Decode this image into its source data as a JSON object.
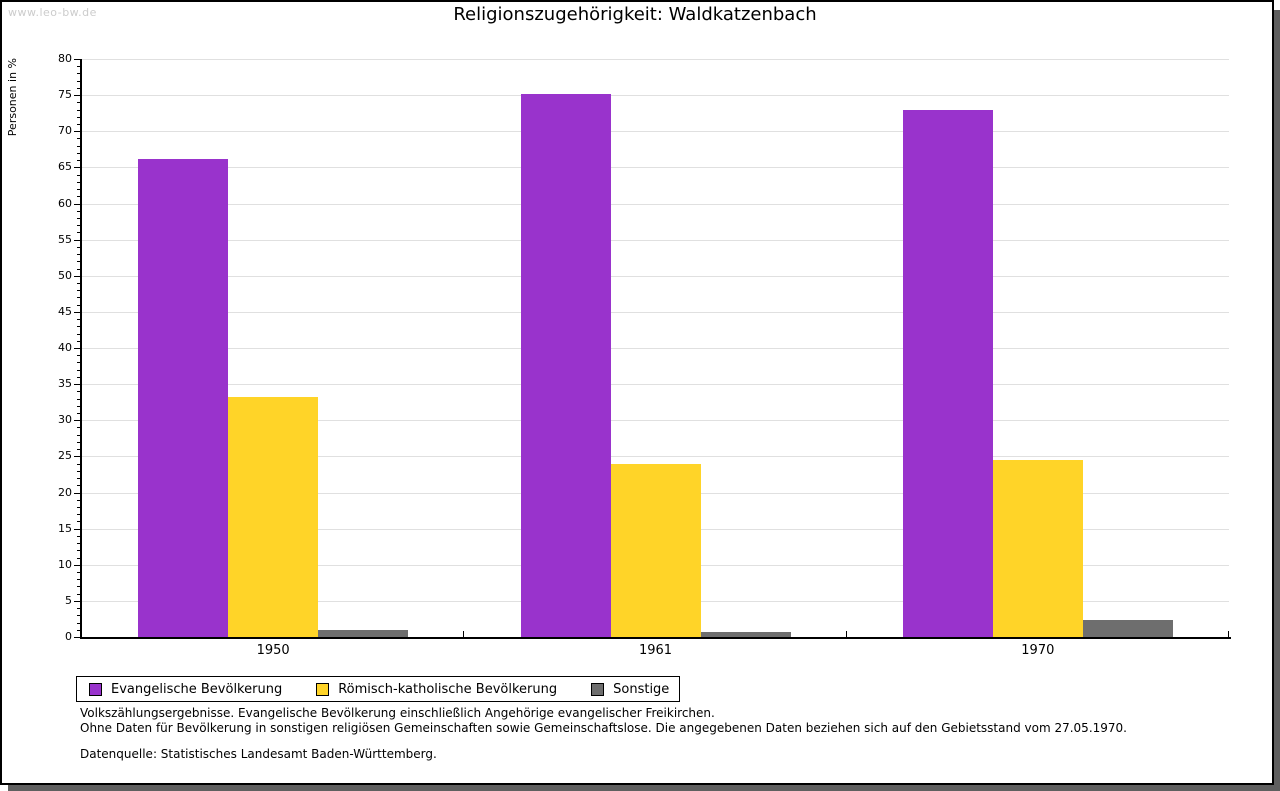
{
  "window": {
    "watermark": "www.leo-bw.de"
  },
  "title": "Religionszugehörigkeit: Waldkatzenbach",
  "chart_data": {
    "type": "bar",
    "title": "Religionszugehörigkeit: Waldkatzenbach",
    "ylabel": "Personen in %",
    "xlabel": "",
    "categories": [
      "1950",
      "1961",
      "1970"
    ],
    "series": [
      {
        "name": "Evangelische Bevölkerung",
        "color": "#9933cc",
        "values": [
          66.1,
          75.2,
          73.0
        ]
      },
      {
        "name": "Römisch-katholische Bevölkerung",
        "color": "#ffd428",
        "values": [
          33.2,
          24.0,
          24.5
        ]
      },
      {
        "name": "Sonstige",
        "color": "#6e6e6e",
        "values": [
          0.9,
          0.7,
          2.3
        ]
      }
    ],
    "ylim": [
      0,
      80
    ],
    "ytick_step": 5,
    "yminor_step": 1,
    "grid": true,
    "gridline_color": "#e0e0e0",
    "legend_position": "bottom-left"
  },
  "footnotes": {
    "line1": "Volkszählungsergebnisse. Evangelische Bevölkerung einschließlich Angehörige evangelischer Freikirchen.",
    "line2": "Ohne Daten für Bevölkerung in sonstigen religiösen Gemeinschaften sowie Gemeinschaftslose. Die angegebenen Daten beziehen sich auf den Gebietsstand vom 27.05.1970.",
    "source": "Datenquelle: Statistisches Landesamt Baden-Württemberg."
  }
}
